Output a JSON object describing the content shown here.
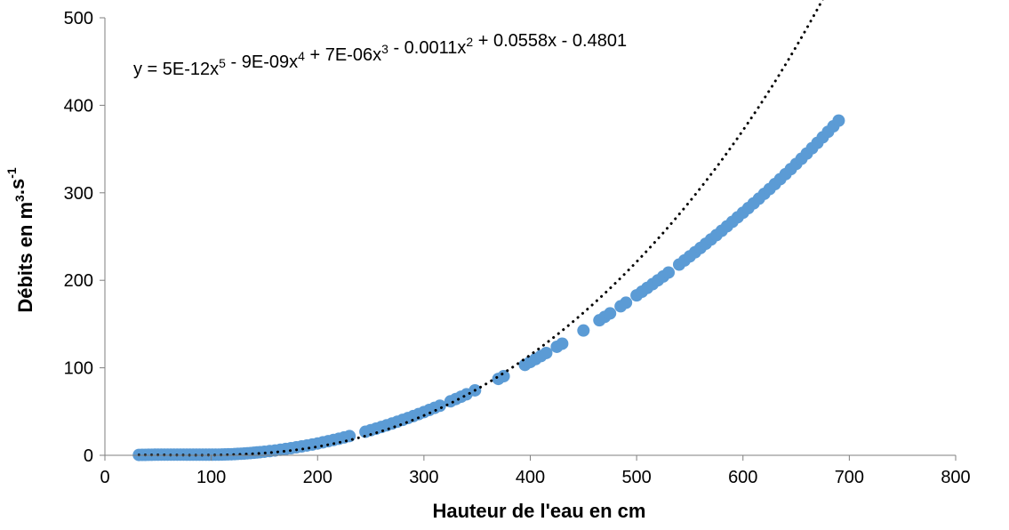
{
  "chart_data": {
    "type": "scatter",
    "xlabel": "Hauteur de l'eau en cm",
    "ylabel": {
      "base": "Débits en m",
      "sup1": "3",
      "mid": ".s",
      "sup2": "-1"
    },
    "xlim": [
      0,
      800
    ],
    "ylim": [
      0,
      500
    ],
    "x_ticks": [
      "0",
      "100",
      "200",
      "300",
      "400",
      "500",
      "600",
      "700",
      "800"
    ],
    "y_ticks": [
      "0",
      "100",
      "200",
      "300",
      "400",
      "500"
    ],
    "grid": false,
    "legend": "none",
    "trendline": {
      "type": "polynomial",
      "order": 5,
      "style": "dotted",
      "color": "#000000",
      "coefficients": [
        5e-12,
        -9e-09,
        7e-06,
        -0.0011,
        0.0558,
        -0.4801
      ],
      "equation_parts": [
        {
          "t": "y = 5E-12x",
          "s": false
        },
        {
          "t": "5",
          "s": true
        },
        {
          "t": " - 9E-09x",
          "s": false
        },
        {
          "t": "4",
          "s": true
        },
        {
          "t": " + 7E-06x",
          "s": false
        },
        {
          "t": "3",
          "s": true
        },
        {
          "t": " - 0.0011x",
          "s": false
        },
        {
          "t": "2",
          "s": true
        },
        {
          "t": " + 0.0558x - 0.4801",
          "s": false
        }
      ]
    },
    "series": [
      {
        "color": "#5B9BD5",
        "points": [
          [
            32,
            0.4
          ],
          [
            35,
            0.5
          ],
          [
            38,
            0.5
          ],
          [
            41,
            0.6
          ],
          [
            44,
            0.6
          ],
          [
            47,
            0.7
          ],
          [
            50,
            0.7
          ],
          [
            53,
            0.8
          ],
          [
            56,
            0.8
          ],
          [
            59,
            0.8
          ],
          [
            62,
            0.8
          ],
          [
            65,
            0.8
          ],
          [
            68,
            0.8
          ],
          [
            71,
            0.8
          ],
          [
            74,
            0.8
          ],
          [
            77,
            0.7
          ],
          [
            80,
            0.7
          ],
          [
            83,
            0.7
          ],
          [
            86,
            0.7
          ],
          [
            89,
            0.7
          ],
          [
            92,
            0.7
          ],
          [
            95,
            0.7
          ],
          [
            98,
            0.7
          ],
          [
            101,
            0.7
          ],
          [
            104,
            0.8
          ],
          [
            107,
            0.8
          ],
          [
            110,
            0.9
          ],
          [
            113,
            1.0
          ],
          [
            116,
            1.1
          ],
          [
            119,
            1.2
          ],
          [
            122,
            1.4
          ],
          [
            125,
            1.6
          ],
          [
            128,
            1.8
          ],
          [
            131,
            2.0
          ],
          [
            134,
            2.3
          ],
          [
            137,
            2.6
          ],
          [
            140,
            2.9
          ],
          [
            143,
            3.3
          ],
          [
            146,
            3.6
          ],
          [
            150,
            4.1
          ],
          [
            155,
            4.8
          ],
          [
            160,
            5.5
          ],
          [
            165,
            6.3
          ],
          [
            170,
            7.2
          ],
          [
            175,
            8.1
          ],
          [
            180,
            9.1
          ],
          [
            185,
            10.1
          ],
          [
            190,
            11.2
          ],
          [
            195,
            12.3
          ],
          [
            200,
            13.5
          ],
          [
            205,
            14.8
          ],
          [
            210,
            16.1
          ],
          [
            215,
            17.5
          ],
          [
            220,
            18.9
          ],
          [
            225,
            20.4
          ],
          [
            230,
            22.0
          ],
          [
            245,
            26.9
          ],
          [
            250,
            28.7
          ],
          [
            255,
            30.5
          ],
          [
            260,
            32.4
          ],
          [
            265,
            34.3
          ],
          [
            270,
            36.3
          ],
          [
            275,
            38.4
          ],
          [
            280,
            40.5
          ],
          [
            285,
            42.6
          ],
          [
            290,
            44.8
          ],
          [
            295,
            47.1
          ],
          [
            300,
            49.4
          ],
          [
            305,
            51.8
          ],
          [
            310,
            54.2
          ],
          [
            315,
            56.6
          ],
          [
            325,
            61.7
          ],
          [
            330,
            64.3
          ],
          [
            335,
            67.0
          ],
          [
            340,
            69.7
          ],
          [
            348,
            74.2
          ],
          [
            370,
            87.3
          ],
          [
            375,
            90.4
          ],
          [
            395,
            103.3
          ],
          [
            400,
            106.6
          ],
          [
            405,
            110.0
          ],
          [
            410,
            113.4
          ],
          [
            415,
            116.9
          ],
          [
            425,
            124.0
          ],
          [
            430,
            127.6
          ],
          [
            450,
            142.6
          ],
          [
            465,
            154.3
          ],
          [
            470,
            158.2
          ],
          [
            475,
            162.2
          ],
          [
            485,
            170.3
          ],
          [
            490,
            174.4
          ],
          [
            500,
            182.8
          ],
          [
            505,
            187.0
          ],
          [
            510,
            191.3
          ],
          [
            515,
            195.6
          ],
          [
            520,
            200.0
          ],
          [
            525,
            204.4
          ],
          [
            530,
            208.9
          ],
          [
            540,
            218.0
          ],
          [
            545,
            222.7
          ],
          [
            550,
            227.4
          ],
          [
            555,
            232.1
          ],
          [
            560,
            236.9
          ],
          [
            565,
            241.8
          ],
          [
            570,
            246.7
          ],
          [
            575,
            251.6
          ],
          [
            580,
            256.6
          ],
          [
            585,
            261.7
          ],
          [
            590,
            266.8
          ],
          [
            595,
            272.0
          ],
          [
            600,
            277.2
          ],
          [
            605,
            282.5
          ],
          [
            610,
            287.9
          ],
          [
            615,
            293.3
          ],
          [
            620,
            298.8
          ],
          [
            625,
            304.3
          ],
          [
            630,
            309.9
          ],
          [
            635,
            315.6
          ],
          [
            640,
            321.3
          ],
          [
            645,
            327.1
          ],
          [
            650,
            333.0
          ],
          [
            655,
            338.9
          ],
          [
            660,
            344.9
          ],
          [
            665,
            351.0
          ],
          [
            670,
            357.1
          ],
          [
            675,
            363.4
          ],
          [
            680,
            369.7
          ],
          [
            685,
            376.0
          ],
          [
            690,
            382.5
          ]
        ]
      }
    ]
  }
}
